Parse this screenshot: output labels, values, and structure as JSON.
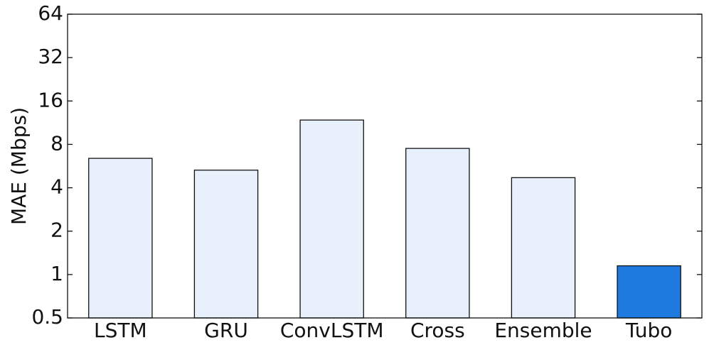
{
  "chart_data": {
    "type": "bar",
    "ylabel": "MAE (Mbps)",
    "categories": [
      "LSTM",
      "GRU",
      "ConvLSTM",
      "Cross",
      "Ensemble",
      "Tubo"
    ],
    "values": [
      6.4,
      5.3,
      11.8,
      7.5,
      4.7,
      1.15
    ],
    "colors": [
      "#e8f0fb",
      "#e8f0fb",
      "#e8f0fb",
      "#e8f0fb",
      "#e8f0fb",
      "#1f7ae0"
    ],
    "yscale": "log2",
    "ylim": [
      0.5,
      64
    ],
    "yticks": [
      0.5,
      1,
      2,
      4,
      8,
      16,
      32,
      64
    ],
    "grid": false
  }
}
